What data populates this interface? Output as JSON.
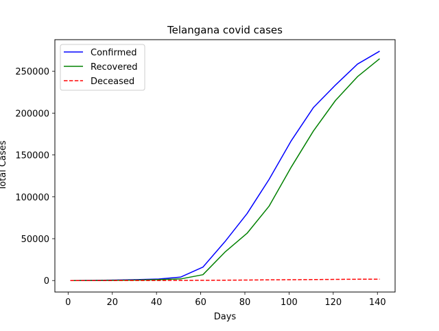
{
  "chart_data": {
    "type": "line",
    "title": "Telangana covid cases",
    "xlabel": "Days",
    "ylabel": "Total Cases",
    "xlim": [
      -6,
      148
    ],
    "ylim": [
      -13700,
      287700
    ],
    "xticks": [
      0,
      20,
      40,
      60,
      80,
      100,
      120,
      140
    ],
    "yticks": [
      0,
      50000,
      100000,
      150000,
      200000,
      250000
    ],
    "grid": false,
    "legend_position": "upper-left",
    "x": [
      1,
      11,
      21,
      31,
      41,
      51,
      61,
      71,
      81,
      91,
      101,
      111,
      121,
      131,
      141
    ],
    "series": [
      {
        "name": "Confirmed",
        "color": "#0000ff",
        "linestyle": "solid",
        "values": [
          0,
          200,
          600,
          1100,
          1800,
          4200,
          16000,
          46500,
          80000,
          121000,
          167000,
          206500,
          233500,
          258500,
          274000
        ]
      },
      {
        "name": "Recovered",
        "color": "#008000",
        "linestyle": "solid",
        "values": [
          0,
          100,
          300,
          600,
          1100,
          2000,
          7000,
          34000,
          56500,
          89000,
          135500,
          178500,
          215000,
          243500,
          265000
        ]
      },
      {
        "name": "Deceased",
        "color": "#ff0000",
        "linestyle": "dashed",
        "values": [
          0,
          20,
          40,
          70,
          100,
          150,
          250,
          400,
          600,
          800,
          1000,
          1200,
          1400,
          1550,
          1650
        ]
      }
    ]
  }
}
